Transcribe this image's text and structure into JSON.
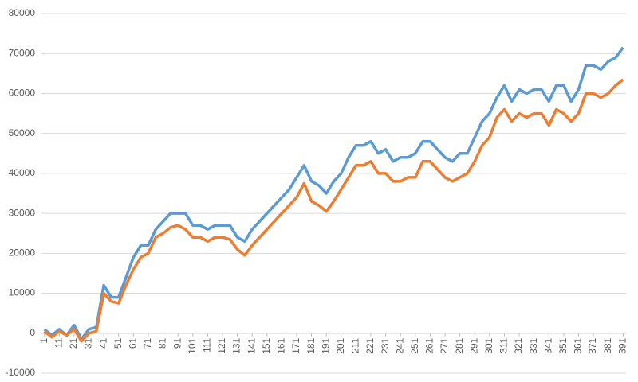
{
  "chart_data": {
    "type": "line",
    "x": [
      1,
      6,
      11,
      16,
      21,
      26,
      31,
      36,
      41,
      46,
      51,
      56,
      61,
      66,
      71,
      76,
      81,
      86,
      91,
      96,
      101,
      106,
      111,
      116,
      121,
      126,
      131,
      136,
      141,
      146,
      151,
      156,
      161,
      166,
      171,
      176,
      181,
      186,
      191,
      196,
      201,
      206,
      211,
      216,
      221,
      226,
      231,
      236,
      241,
      246,
      251,
      256,
      261,
      266,
      271,
      276,
      281,
      286,
      291,
      296,
      301,
      306,
      311,
      316,
      321,
      326,
      331,
      336,
      341,
      346,
      351,
      356,
      361,
      366,
      371,
      376,
      381,
      386,
      391
    ],
    "series": [
      {
        "color": "#5b9bd5",
        "values": [
          1000,
          -500,
          1000,
          -500,
          2000,
          -1500,
          1000,
          1500,
          12000,
          9000,
          9000,
          14000,
          19000,
          22000,
          22000,
          26000,
          28000,
          30000,
          30000,
          30000,
          27000,
          27000,
          26000,
          27000,
          27000,
          27000,
          24000,
          23000,
          26000,
          28000,
          30000,
          32000,
          34000,
          36000,
          39000,
          42000,
          38000,
          37000,
          35000,
          38000,
          40000,
          44000,
          47000,
          47000,
          48000,
          45000,
          46000,
          43000,
          44000,
          44000,
          45000,
          48000,
          48000,
          46000,
          44000,
          43000,
          45000,
          45000,
          49000,
          53000,
          55000,
          59000,
          62000,
          58000,
          61000,
          60000,
          61000,
          61000,
          58000,
          62000,
          62000,
          58000,
          61000,
          67000,
          67000,
          66000,
          68000,
          69000,
          71500
        ]
      },
      {
        "color": "#ed7d31",
        "values": [
          500,
          -1000,
          500,
          -500,
          1000,
          -2000,
          0,
          500,
          10000,
          8000,
          7500,
          12000,
          16000,
          19000,
          20000,
          24000,
          25000,
          26500,
          27000,
          26000,
          24000,
          24000,
          23000,
          24000,
          24000,
          23500,
          21000,
          19500,
          22000,
          24000,
          26000,
          28000,
          30000,
          32000,
          34000,
          37500,
          33000,
          32000,
          30500,
          33000,
          36000,
          39000,
          42000,
          42000,
          43000,
          40000,
          40000,
          38000,
          38000,
          39000,
          39000,
          43000,
          43000,
          41000,
          39000,
          38000,
          39000,
          40000,
          43000,
          47000,
          49000,
          54000,
          56000,
          53000,
          55000,
          54000,
          55000,
          55000,
          52000,
          56000,
          55000,
          53000,
          55000,
          60000,
          60000,
          59000,
          60000,
          62000,
          63500
        ]
      }
    ],
    "xlim": [
      -1,
      393
    ],
    "xticks": [
      1,
      11,
      21,
      31,
      41,
      51,
      61,
      71,
      81,
      91,
      101,
      111,
      121,
      131,
      141,
      151,
      161,
      171,
      181,
      191,
      201,
      211,
      221,
      231,
      241,
      251,
      261,
      271,
      281,
      291,
      301,
      311,
      321,
      331,
      341,
      351,
      361,
      371,
      381,
      391
    ],
    "ylim": [
      -10000,
      80000
    ],
    "yticks": [
      -10000,
      0,
      10000,
      20000,
      30000,
      40000,
      50000,
      60000,
      70000,
      80000
    ],
    "grid": true
  }
}
